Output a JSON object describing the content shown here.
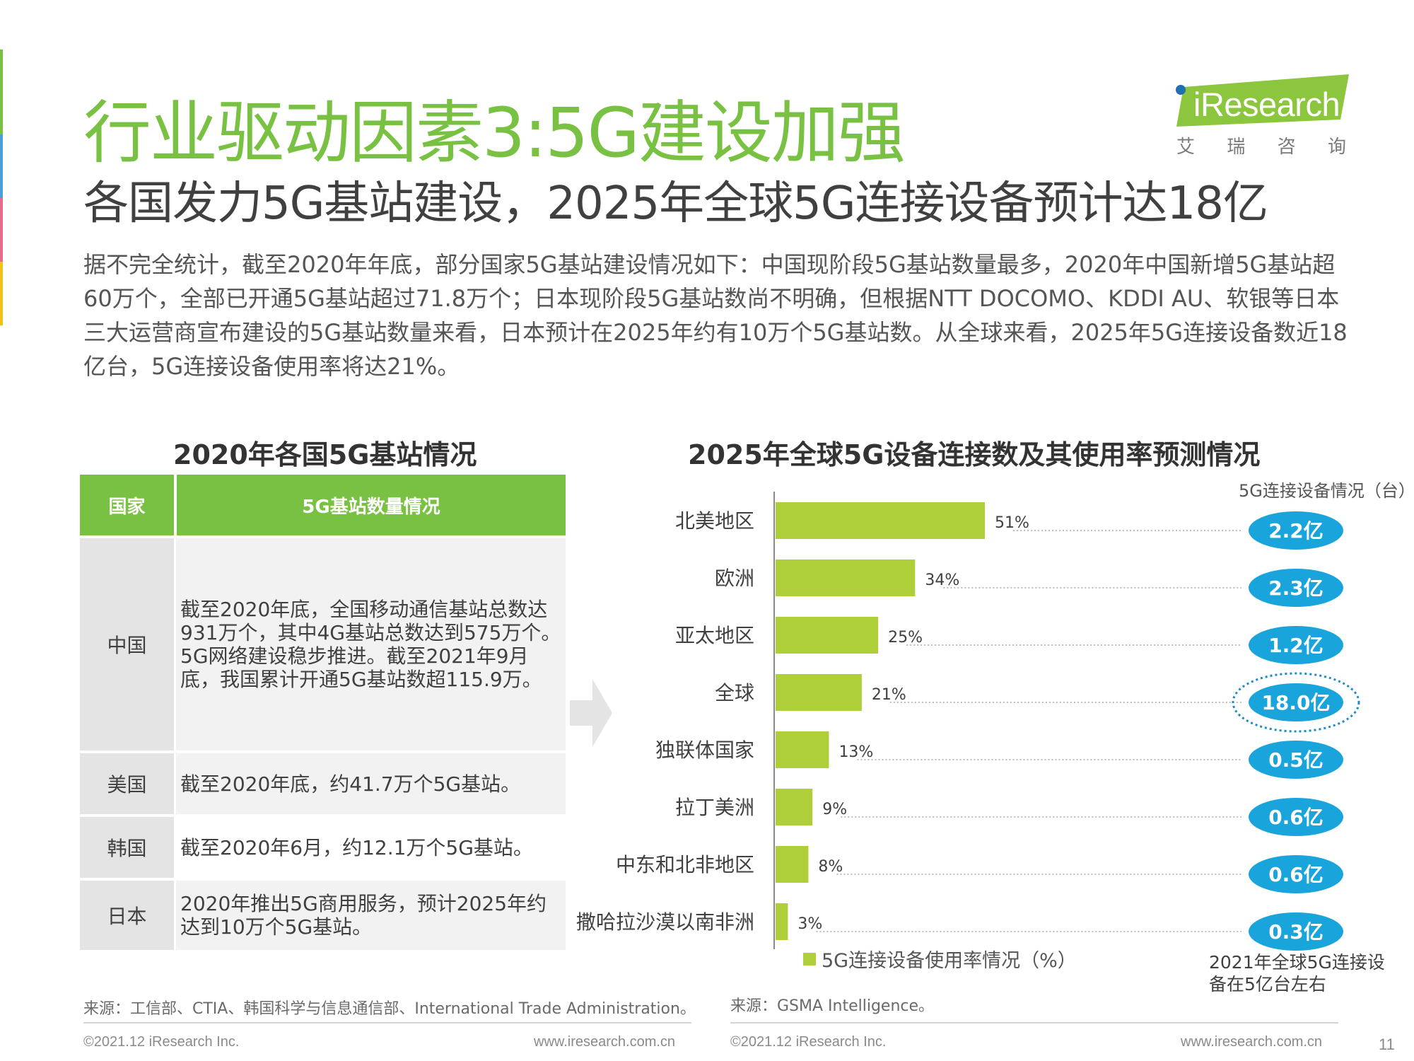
{
  "colors": {
    "brand_green": "#79c143",
    "bar_green": "#aecf3a",
    "pill_blue": "#19a4db",
    "highlight_circle": "#1c8dc9"
  },
  "logo": {
    "brand": "iResearch",
    "chars": [
      "艾",
      "瑞",
      "咨",
      "询"
    ]
  },
  "header": {
    "title": "行业驱动因素3:5G建设加强",
    "subtitle": "各国发力5G基站建设，2025年全球5G连接设备预计达18亿"
  },
  "intro": "据不完全统计，截至2020年年底，部分国家5G基站建设情况如下：中国现阶段5G基站数量最多，2020年中国新增5G基站超60万个，全部已开通5G基站超过71.8万个；日本现阶段5G基站数尚不明确，但根据NTT DOCOMO、KDDI  AU、软银等日本三大运营商宣布建设的5G基站数量来看，日本预计在2025年约有10万个5G基站数。从全球来看，2025年5G连接设备数近18亿台，5G连接设备使用率将达21%。",
  "left_panel": {
    "title": "2020年各国5G基站情况",
    "header_country": "国家",
    "header_detail": "5G基站数量情况",
    "rows": [
      {
        "country": "中国",
        "detail": "截至2020年底，全国移动通信基站总数达931万个，其中4G基站总数达到575万个。5G网络建设稳步推进。截至2021年9月底，我国累计开通5G基站数超115.9万。"
      },
      {
        "country": "美国",
        "detail": "截至2020年底，约41.7万个5G基站。"
      },
      {
        "country": "韩国",
        "detail": "截至2020年6月，约12.1万个5G基站。"
      },
      {
        "country": "日本",
        "detail": "2020年推出5G商用服务，预计2025年约达到10万个5G基站。"
      }
    ],
    "source": "来源：工信部、CTIA、韩国科学与信息通信部、International Trade Administration。",
    "footer_left": "©2021.12 iResearch Inc.",
    "footer_right": "www.iresearch.com.cn"
  },
  "right_panel": {
    "title": "2025年全球5G设备连接数及其使用率预测情况",
    "unit_label": "5G连接设备情况（台）",
    "legend_label": "5G连接设备使用率情况（%）",
    "note": "2021年全球5G连接设备在5亿台左右",
    "source": "来源：GSMA Intelligence。",
    "footer_left": "©2021.12 iResearch Inc.",
    "footer_right": "www.iresearch.com.cn"
  },
  "chart_data": {
    "type": "bar",
    "orientation": "horizontal",
    "title": "2025年全球5G设备连接数及其使用率预测情况",
    "categories": [
      "北美地区",
      "欧洲",
      "亚太地区",
      "全球",
      "独联体国家",
      "拉丁美洲",
      "中东和北非地区",
      "撒哈拉沙漠以南非洲"
    ],
    "series": [
      {
        "name": "5G连接设备使用率情况（%）",
        "values": [
          51,
          34,
          25,
          21,
          13,
          9,
          8,
          3
        ],
        "unit": "%"
      }
    ],
    "value_labels": [
      "51%",
      "34%",
      "25%",
      "21%",
      "13%",
      "9%",
      "8%",
      "3%"
    ],
    "connections": [
      "2.2亿",
      "2.3亿",
      "1.2亿",
      "18.0亿",
      "0.5亿",
      "0.6亿",
      "0.6亿",
      "0.3亿"
    ],
    "connections_label": "5G连接设备情况（台）",
    "highlight_category": "全球",
    "xlim": [
      0,
      51
    ],
    "legend_position": "bottom"
  },
  "page_number": "11"
}
